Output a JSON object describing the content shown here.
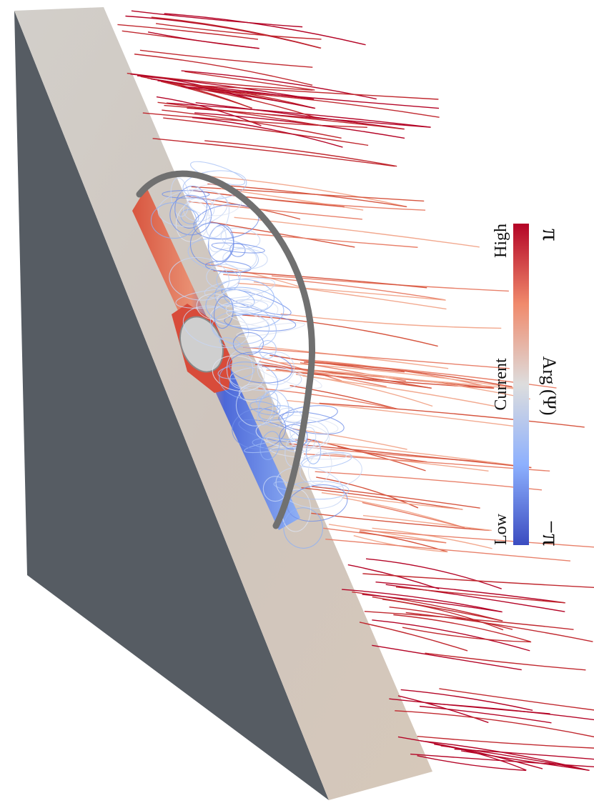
{
  "colorbar": {
    "labels": [
      "Low",
      "Current",
      "High"
    ],
    "min_label": "−π",
    "max_label": "π",
    "title": "Arg (Ψ)"
  }
}
